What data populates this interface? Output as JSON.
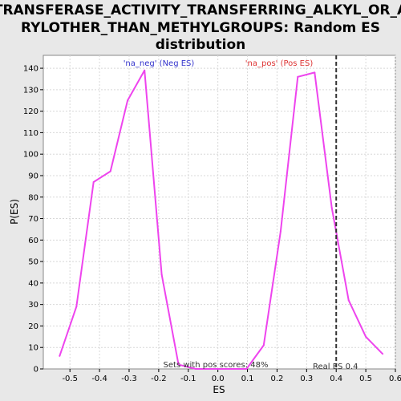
{
  "chart_data": {
    "type": "line",
    "title_lines": [
      "TRANSFERASE_ACTIVITY_TRANSFERRING_ALKYL_OR_A",
      "RYLOTHER_THAN_METHYLGROUPS: Random ES",
      "distribution"
    ],
    "xlabel": "ES",
    "ylabel": "P(ES)",
    "xlim": [
      -0.59,
      0.6
    ],
    "ylim": [
      0,
      146
    ],
    "xticks": [
      -0.5,
      -0.4,
      -0.3,
      -0.2,
      -0.1,
      0.0,
      0.1,
      0.2,
      0.3,
      0.4,
      0.5,
      0.6
    ],
    "xtick_labels": [
      "-0.5",
      "-0.4",
      "-0.3",
      "-0.2",
      "-0.1",
      "0.0",
      "0.1",
      "0.2",
      "0.3",
      "0.4",
      "0.5",
      "0.6"
    ],
    "yticks": [
      0,
      10,
      20,
      30,
      40,
      50,
      60,
      70,
      80,
      90,
      100,
      110,
      120,
      130,
      140
    ],
    "ytick_labels": [
      "0",
      "10",
      "20",
      "30",
      "40",
      "50",
      "60",
      "70",
      "80",
      "90",
      "100",
      "110",
      "120",
      "130",
      "140"
    ],
    "grid": true,
    "series": [
      {
        "color": "#ee44ee",
        "x": [
          -0.535,
          -0.478,
          -0.42,
          -0.363,
          -0.305,
          -0.248,
          -0.19,
          -0.133,
          -0.075,
          -0.018,
          0.04,
          0.097,
          0.155,
          0.212,
          0.27,
          0.327,
          0.385,
          0.442,
          0.5,
          0.557
        ],
        "y": [
          6,
          29,
          87,
          92,
          125,
          139,
          44,
          2,
          0,
          0,
          0,
          0,
          11,
          64,
          136,
          138,
          75,
          32,
          15,
          7
        ]
      }
    ],
    "vline": {
      "x": 0.4,
      "color": "#333333",
      "style": "dashed"
    },
    "annotations": {
      "neg_label": "'na_neg' (Neg ES)",
      "neg_color": "#3333cc",
      "pos_label": "'na_pos' (Pos ES)",
      "pos_color": "#dd3333",
      "sets_label": "Sets with pos scores: 48%",
      "real_es_label": "Real ES 0.4"
    }
  }
}
